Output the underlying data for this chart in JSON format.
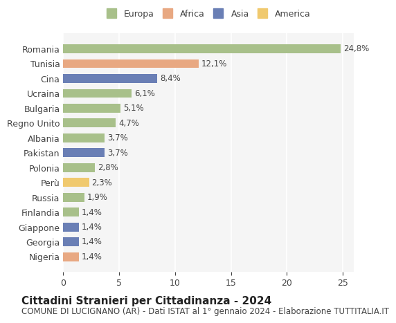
{
  "countries": [
    "Romania",
    "Tunisia",
    "Cina",
    "Ucraina",
    "Bulgaria",
    "Regno Unito",
    "Albania",
    "Pakistan",
    "Polonia",
    "Perù",
    "Russia",
    "Finlandia",
    "Giappone",
    "Georgia",
    "Nigeria"
  ],
  "values": [
    24.8,
    12.1,
    8.4,
    6.1,
    5.1,
    4.7,
    3.7,
    3.7,
    2.8,
    2.3,
    1.9,
    1.4,
    1.4,
    1.4,
    1.4
  ],
  "labels": [
    "24,8%",
    "12,1%",
    "8,4%",
    "6,1%",
    "5,1%",
    "4,7%",
    "3,7%",
    "3,7%",
    "2,8%",
    "2,3%",
    "1,9%",
    "1,4%",
    "1,4%",
    "1,4%",
    "1,4%"
  ],
  "continents": [
    "Europa",
    "Africa",
    "Asia",
    "Europa",
    "Europa",
    "Europa",
    "Europa",
    "Asia",
    "Europa",
    "America",
    "Europa",
    "Europa",
    "Asia",
    "Asia",
    "Africa"
  ],
  "colors": {
    "Europa": "#a8c08a",
    "Africa": "#e8a882",
    "Asia": "#6a7fb5",
    "America": "#f0c96e"
  },
  "legend_order": [
    "Europa",
    "Africa",
    "Asia",
    "America"
  ],
  "title": "Cittadini Stranieri per Cittadinanza - 2024",
  "subtitle": "COMUNE DI LUCIGNANO (AR) - Dati ISTAT al 1° gennaio 2024 - Elaborazione TUTTITALIA.IT",
  "xlim": [
    0,
    26
  ],
  "xticks": [
    0,
    5,
    10,
    15,
    20,
    25
  ],
  "background_color": "#ffffff",
  "plot_bg_color": "#f5f5f5",
  "grid_color": "#ffffff",
  "bar_height": 0.6,
  "title_fontsize": 11,
  "subtitle_fontsize": 8.5,
  "tick_fontsize": 9,
  "label_fontsize": 8.5,
  "legend_fontsize": 9
}
